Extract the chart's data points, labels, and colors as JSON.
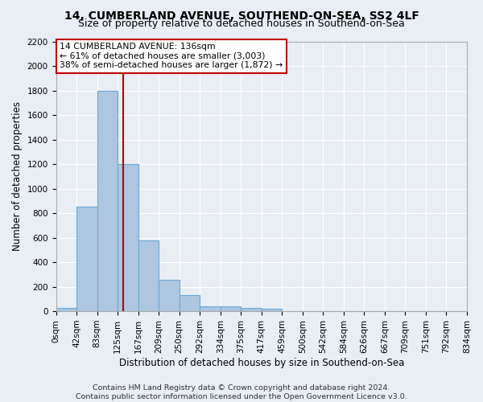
{
  "title1": "14, CUMBERLAND AVENUE, SOUTHEND-ON-SEA, SS2 4LF",
  "title2": "Size of property relative to detached houses in Southend-on-Sea",
  "xlabel": "Distribution of detached houses by size in Southend-on-Sea",
  "ylabel": "Number of detached properties",
  "footnote1": "Contains HM Land Registry data © Crown copyright and database right 2024.",
  "footnote2": "Contains public sector information licensed under the Open Government Licence v3.0.",
  "bin_labels": [
    "0sqm",
    "42sqm",
    "83sqm",
    "125sqm",
    "167sqm",
    "209sqm",
    "250sqm",
    "292sqm",
    "334sqm",
    "375sqm",
    "417sqm",
    "459sqm",
    "500sqm",
    "542sqm",
    "584sqm",
    "626sqm",
    "667sqm",
    "709sqm",
    "751sqm",
    "792sqm",
    "834sqm"
  ],
  "bar_values": [
    25,
    850,
    1800,
    1200,
    580,
    255,
    130,
    42,
    42,
    28,
    18,
    0,
    0,
    0,
    0,
    0,
    0,
    0,
    0,
    0
  ],
  "ylim": [
    0,
    2200
  ],
  "yticks": [
    0,
    200,
    400,
    600,
    800,
    1000,
    1200,
    1400,
    1600,
    1800,
    2000,
    2200
  ],
  "bar_color": "#aec6e0",
  "bar_edgecolor": "#6aaad4",
  "bar_linewidth": 0.8,
  "vline_color": "#c00000",
  "annotation_box_text": "14 CUMBERLAND AVENUE: 136sqm\n← 61% of detached houses are smaller (3,003)\n38% of semi-detached houses are larger (1,872) →",
  "annotation_box_color": "#c00000",
  "background_color": "#e8eef4",
  "grid_color": "#ffffff",
  "title1_fontsize": 10,
  "title2_fontsize": 9,
  "axis_label_fontsize": 8.5,
  "tick_fontsize": 7.5,
  "footnote_fontsize": 6.8,
  "annot_fontsize": 7.8
}
